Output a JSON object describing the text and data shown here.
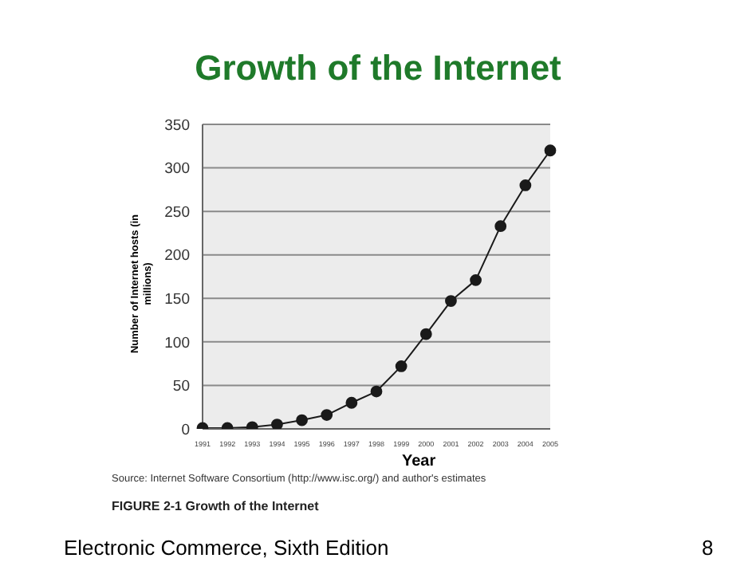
{
  "chart_data": {
    "type": "line",
    "title": "Growth of the Internet",
    "xlabel": "Year",
    "ylabel": "Number of Internet hosts (in millions)",
    "categories": [
      "1991",
      "1992",
      "1993",
      "1994",
      "1995",
      "1996",
      "1997",
      "1998",
      "1999",
      "2000",
      "2001",
      "2002",
      "2003",
      "2004",
      "2005"
    ],
    "series": [
      {
        "color": "#1a1a1a",
        "values": [
          1,
          1,
          2,
          5,
          10,
          16,
          30,
          43,
          72,
          109,
          147,
          171,
          233,
          280,
          320
        ]
      }
    ],
    "ylim": [
      0,
      350
    ],
    "yticks": [
      0,
      50,
      100,
      150,
      200,
      250,
      300,
      350
    ],
    "grid": "y",
    "marker": "circle",
    "line_style": "solid",
    "annotations": [
      "Source: Internet Software Consortium (http://www.isc.org/) and author's estimates",
      "FIGURE 2-1   Growth of the Internet",
      "Electronic Commerce, Sixth Edition",
      "8"
    ]
  }
}
